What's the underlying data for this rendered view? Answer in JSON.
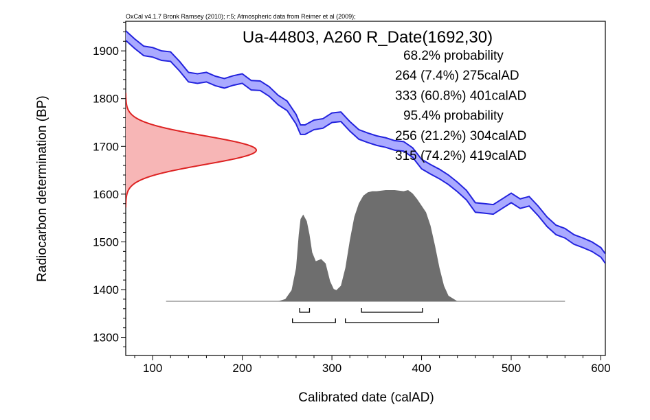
{
  "chart_data": {
    "type": "area",
    "credit": "OxCal v4.1.7 Bronk Ramsey (2010); r:5; Atmospheric data from Reimer et al (2009);",
    "title": "Ua-44803, A260 R_Date(1692,30)",
    "xlabel": "Calibrated date (calAD)",
    "ylabel": "Radiocarbon determination (BP)",
    "xlim": [
      70,
      605
    ],
    "ylim": [
      1262,
      1962
    ],
    "x_ticks": [
      100,
      200,
      300,
      400,
      500,
      600
    ],
    "y_ticks": [
      1300,
      1400,
      1500,
      1600,
      1700,
      1800,
      1900
    ],
    "summary_lines": [
      "68.2% probability",
      "264 (7.4%) 275calAD",
      "333 (60.8%) 401calAD",
      "95.4% probability",
      "256 (21.2%) 304calAD",
      "315 (74.2%) 419calAD"
    ],
    "colors": {
      "calibration_curve": "#2222dd",
      "calibration_fill": "#aaaaff",
      "measurement_line": "#dd2222",
      "measurement_fill": "#f7b6b6",
      "posterior_fill": "#6e6e6e",
      "frame": "#000000"
    },
    "measurement": {
      "mean": 1692,
      "sigma": 30
    },
    "calibration_curve": {
      "x": [
        70,
        80,
        90,
        100,
        110,
        120,
        130,
        140,
        150,
        160,
        170,
        180,
        190,
        200,
        210,
        220,
        230,
        240,
        250,
        260,
        265,
        270,
        280,
        290,
        300,
        310,
        320,
        330,
        340,
        350,
        360,
        370,
        380,
        390,
        400,
        410,
        420,
        430,
        440,
        450,
        460,
        470,
        480,
        490,
        500,
        510,
        520,
        530,
        540,
        550,
        560,
        570,
        580,
        590,
        600,
        605
      ],
      "y": [
        1932,
        1915,
        1900,
        1897,
        1890,
        1888,
        1868,
        1845,
        1842,
        1845,
        1837,
        1832,
        1838,
        1842,
        1828,
        1827,
        1815,
        1797,
        1785,
        1757,
        1735,
        1735,
        1745,
        1748,
        1760,
        1762,
        1742,
        1725,
        1718,
        1712,
        1708,
        1702,
        1700,
        1687,
        1663,
        1652,
        1642,
        1630,
        1615,
        1598,
        1572,
        1570,
        1568,
        1580,
        1592,
        1580,
        1585,
        1565,
        1542,
        1525,
        1518,
        1505,
        1498,
        1490,
        1478,
        1465
      ],
      "halfwidth": [
        10,
        10,
        10,
        10,
        10,
        10,
        10,
        10,
        10,
        10,
        10,
        10,
        10,
        10,
        10,
        10,
        10,
        10,
        10,
        10,
        10,
        10,
        10,
        10,
        10,
        10,
        10,
        10,
        10,
        10,
        10,
        10,
        10,
        10,
        10,
        10,
        10,
        10,
        10,
        10,
        10,
        10,
        10,
        10,
        10,
        10,
        10,
        10,
        10,
        10,
        10,
        10,
        10,
        10,
        10,
        10
      ]
    },
    "posterior": {
      "x": [
        115,
        240,
        248,
        255,
        260,
        263,
        265,
        268,
        272,
        275,
        278,
        282,
        288,
        293,
        298,
        302,
        305,
        310,
        315,
        320,
        325,
        330,
        335,
        340,
        345,
        350,
        360,
        370,
        380,
        385,
        390,
        395,
        400,
        405,
        410,
        415,
        420,
        425,
        430,
        440,
        560
      ],
      "density": [
        0,
        0,
        0.02,
        0.1,
        0.3,
        0.6,
        0.74,
        0.78,
        0.72,
        0.6,
        0.44,
        0.36,
        0.38,
        0.34,
        0.18,
        0.11,
        0.1,
        0.14,
        0.3,
        0.55,
        0.76,
        0.88,
        0.95,
        0.98,
        0.99,
        0.99,
        1.0,
        1.0,
        0.99,
        1.0,
        0.97,
        0.92,
        0.86,
        0.8,
        0.68,
        0.5,
        0.3,
        0.14,
        0.05,
        0,
        0
      ]
    },
    "ranges_68": [
      [
        264,
        275
      ],
      [
        333,
        401
      ]
    ],
    "ranges_95": [
      [
        256,
        304
      ],
      [
        315,
        419
      ]
    ]
  }
}
